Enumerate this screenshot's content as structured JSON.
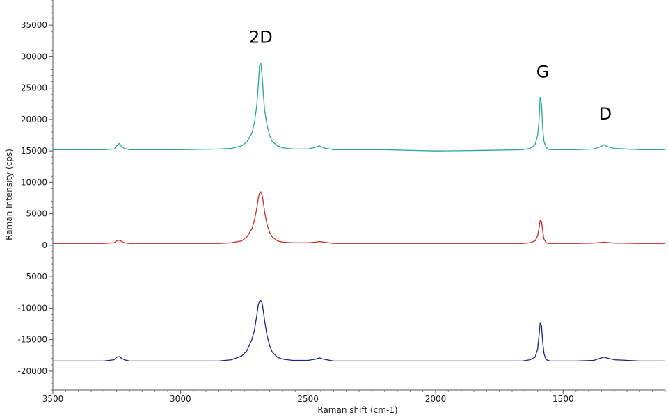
{
  "chart_data": {
    "type": "line",
    "xlabel": "Raman shift (cm-1)",
    "ylabel": "Raman Intensity (cps)",
    "xlim": [
      3500,
      1100
    ],
    "ylim": [
      -23000,
      39000
    ],
    "x_ticks": [
      "3500",
      "3000",
      "2500",
      "2000",
      "1500"
    ],
    "y_ticks": [
      "35000",
      "30000",
      "25000",
      "20000",
      "15000",
      "10000",
      "5000",
      "0",
      "-5000",
      "-10000",
      "-15000",
      "-20000"
    ],
    "grid": false,
    "annotations": [
      {
        "text": "2D",
        "x": 2685,
        "y": 32200
      },
      {
        "text": "G",
        "x": 1580,
        "y": 26700
      },
      {
        "text": "D",
        "x": 1335,
        "y": 20000
      }
    ],
    "series": [
      {
        "color": "#26a69a",
        "x": [
          3500,
          3300,
          3260,
          3250,
          3240,
          3230,
          3220,
          3200,
          3000,
          2850,
          2800,
          2760,
          2740,
          2720,
          2710,
          2700,
          2695,
          2690,
          2685,
          2680,
          2675,
          2670,
          2660,
          2650,
          2640,
          2620,
          2600,
          2560,
          2500,
          2470,
          2455,
          2440,
          2400,
          2200,
          2000,
          1800,
          1660,
          1630,
          1610,
          1600,
          1595,
          1590,
          1585,
          1580,
          1575,
          1570,
          1565,
          1560,
          1550,
          1540,
          1450,
          1380,
          1350,
          1340,
          1330,
          1300,
          1200,
          1100
        ],
        "y": [
          15200,
          15200,
          15300,
          15800,
          16200,
          15700,
          15400,
          15200,
          15200,
          15300,
          15400,
          15800,
          16400,
          17800,
          19500,
          22500,
          25500,
          28500,
          29000,
          27000,
          24000,
          21500,
          19000,
          17400,
          16500,
          15800,
          15500,
          15300,
          15300,
          15600,
          15800,
          15500,
          15200,
          15200,
          15000,
          15100,
          15200,
          15400,
          16000,
          17500,
          19500,
          23500,
          22500,
          18500,
          16500,
          15900,
          15500,
          15300,
          15200,
          15200,
          15200,
          15300,
          15700,
          16000,
          15700,
          15400,
          15200,
          15200
        ]
      },
      {
        "color": "#c62828",
        "x": [
          3500,
          3300,
          3260,
          3250,
          3240,
          3230,
          3220,
          3200,
          3000,
          2850,
          2800,
          2760,
          2740,
          2720,
          2710,
          2700,
          2695,
          2690,
          2685,
          2680,
          2675,
          2670,
          2660,
          2650,
          2640,
          2620,
          2600,
          2560,
          2500,
          2470,
          2455,
          2440,
          2400,
          2200,
          2000,
          1800,
          1660,
          1630,
          1610,
          1600,
          1595,
          1590,
          1585,
          1580,
          1575,
          1570,
          1565,
          1560,
          1550,
          1540,
          1450,
          1380,
          1350,
          1340,
          1330,
          1300,
          1200,
          1100
        ],
        "y": [
          300,
          300,
          400,
          700,
          800,
          600,
          400,
          300,
          300,
          300,
          400,
          700,
          1300,
          2600,
          4000,
          6000,
          7500,
          8300,
          8500,
          8000,
          6800,
          5300,
          3200,
          2000,
          1300,
          700,
          500,
          400,
          400,
          500,
          600,
          500,
          300,
          300,
          300,
          300,
          300,
          400,
          700,
          1500,
          2600,
          4000,
          3800,
          2200,
          1000,
          600,
          400,
          300,
          300,
          300,
          300,
          350,
          450,
          500,
          450,
          350,
          300,
          300
        ]
      },
      {
        "color": "#1a237e",
        "x": [
          3500,
          3300,
          3260,
          3250,
          3240,
          3230,
          3220,
          3200,
          3000,
          2850,
          2800,
          2760,
          2740,
          2720,
          2710,
          2700,
          2695,
          2690,
          2685,
          2680,
          2675,
          2670,
          2660,
          2650,
          2640,
          2620,
          2600,
          2560,
          2500,
          2470,
          2455,
          2440,
          2400,
          2200,
          2000,
          1800,
          1660,
          1630,
          1610,
          1600,
          1595,
          1590,
          1585,
          1580,
          1575,
          1570,
          1565,
          1560,
          1550,
          1540,
          1450,
          1380,
          1350,
          1340,
          1330,
          1300,
          1200,
          1100
        ],
        "y": [
          -18400,
          -18400,
          -18200,
          -17800,
          -17700,
          -18000,
          -18200,
          -18400,
          -18400,
          -18400,
          -18200,
          -17600,
          -16800,
          -15000,
          -13500,
          -11000,
          -9500,
          -8900,
          -8800,
          -9200,
          -10500,
          -12000,
          -14500,
          -16000,
          -17000,
          -17800,
          -18100,
          -18300,
          -18300,
          -18100,
          -17900,
          -18100,
          -18400,
          -18400,
          -18400,
          -18400,
          -18400,
          -18200,
          -17800,
          -16500,
          -14500,
          -12400,
          -12800,
          -15500,
          -17200,
          -17900,
          -18200,
          -18300,
          -18400,
          -18400,
          -18400,
          -18300,
          -17900,
          -17800,
          -17900,
          -18200,
          -18400,
          -18400
        ]
      }
    ]
  }
}
